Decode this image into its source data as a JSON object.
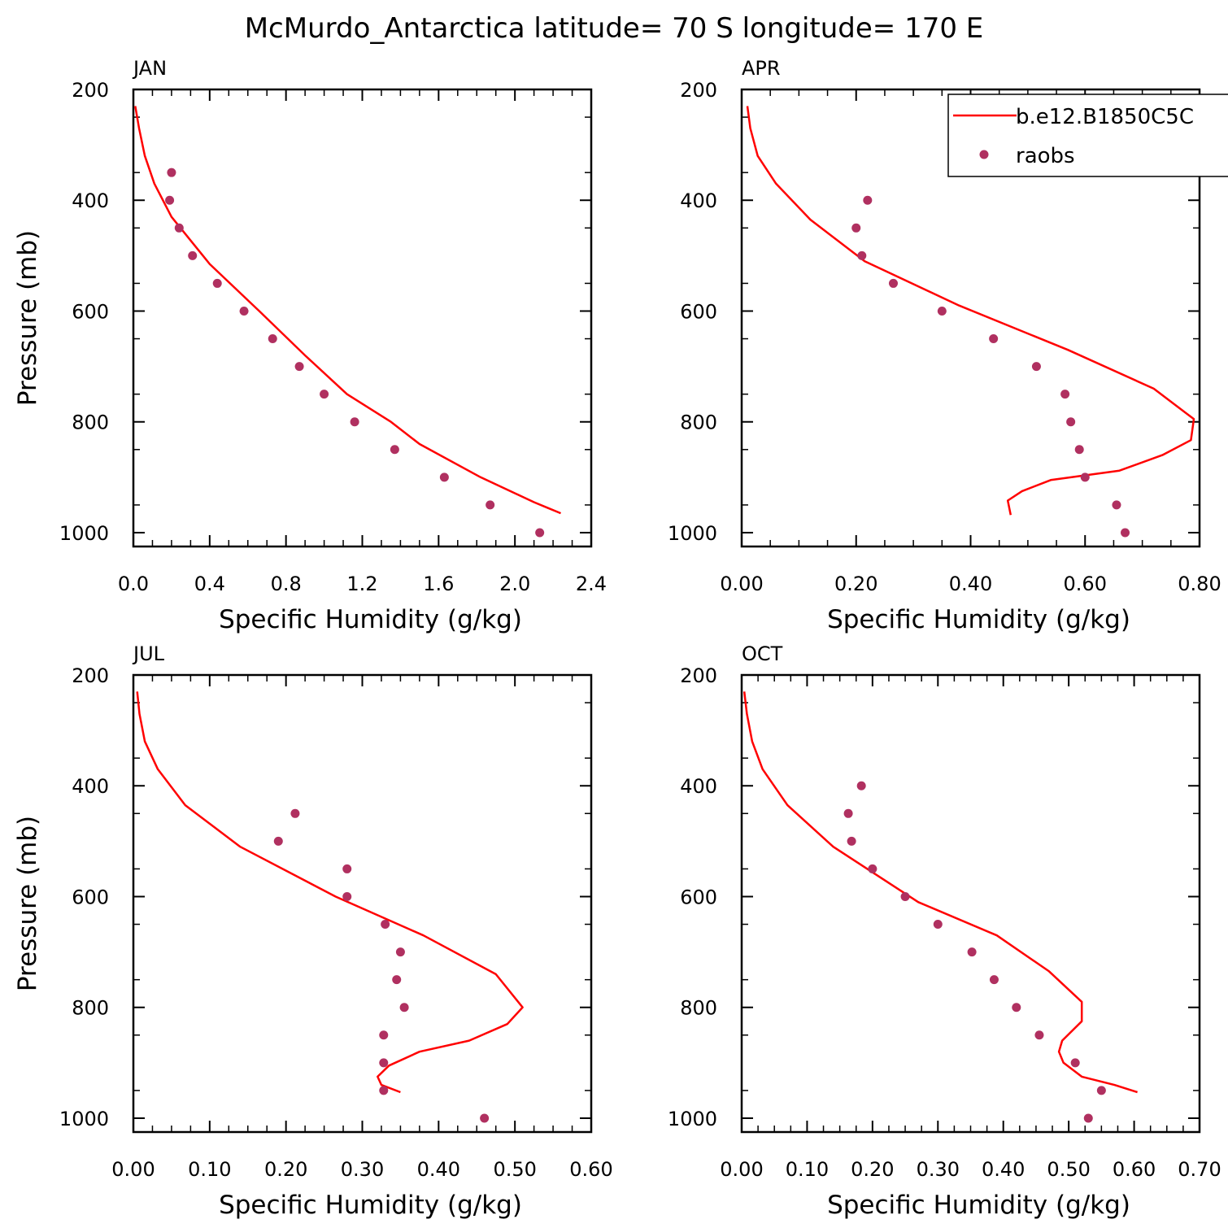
{
  "title": "McMurdo_Antarctica  latitude= 70 S longitude= 170 E",
  "legend": {
    "placement": "top-right of APR panel",
    "items": [
      {
        "label": "b.e12.B1850C5C",
        "marker": "line",
        "color": "#ff0000"
      },
      {
        "label": "raobs",
        "marker": "dot",
        "color": "#b03060"
      }
    ]
  },
  "chart_data": [
    {
      "type": "line",
      "panel": "JAN",
      "xlabel": "Specific Humidity (g/kg)",
      "ylabel": "Pressure (mb)",
      "xlim": [
        0,
        2.4
      ],
      "ylim": [
        1025,
        200
      ],
      "y_inverted": true,
      "xticks": [
        "0.0",
        "0.4",
        "0.8",
        "1.2",
        "1.6",
        "2.0",
        "2.4"
      ],
      "yticks": [
        "200",
        "400",
        "600",
        "800",
        "1000"
      ],
      "series": [
        {
          "name": "b.e12.B1850C5C",
          "kind": "line",
          "color": "#ff0000",
          "x": [
            0.01,
            0.03,
            0.06,
            0.11,
            0.2,
            0.4,
            0.66,
            0.9,
            1.12,
            1.35,
            1.5,
            1.82,
            2.1,
            2.17,
            2.24
          ],
          "y": [
            230,
            270,
            320,
            370,
            430,
            515,
            600,
            680,
            750,
            800,
            840,
            900,
            945,
            955,
            965
          ]
        },
        {
          "name": "raobs",
          "kind": "scatter",
          "color": "#b03060",
          "x": [
            0.2,
            0.19,
            0.24,
            0.31,
            0.44,
            0.58,
            0.73,
            0.87,
            1.0,
            1.16,
            1.37,
            1.63,
            1.87,
            2.13
          ],
          "y": [
            350,
            400,
            450,
            500,
            550,
            600,
            650,
            700,
            750,
            800,
            850,
            900,
            950,
            1000
          ]
        }
      ]
    },
    {
      "type": "line",
      "panel": "APR",
      "xlabel": "Specific Humidity (g/kg)",
      "ylabel": "",
      "xlim": [
        0,
        0.8
      ],
      "ylim": [
        1025,
        200
      ],
      "y_inverted": true,
      "xticks": [
        "0.00",
        "0.20",
        "0.40",
        "0.60",
        "0.80"
      ],
      "yticks": [
        "200",
        "400",
        "600",
        "800",
        "1000"
      ],
      "series": [
        {
          "name": "b.e12.B1850C5C",
          "kind": "line",
          "color": "#ff0000",
          "x": [
            0.01,
            0.015,
            0.028,
            0.06,
            0.12,
            0.215,
            0.38,
            0.57,
            0.72,
            0.79,
            0.785,
            0.735,
            0.66,
            0.54,
            0.49,
            0.465,
            0.47
          ],
          "y": [
            230,
            270,
            320,
            370,
            435,
            510,
            590,
            670,
            740,
            795,
            833,
            860,
            888,
            905,
            925,
            942,
            968
          ]
        },
        {
          "name": "raobs",
          "kind": "scatter",
          "color": "#b03060",
          "x": [
            0.22,
            0.2,
            0.21,
            0.265,
            0.35,
            0.44,
            0.515,
            0.565,
            0.575,
            0.59,
            0.6,
            0.655,
            0.67
          ],
          "y": [
            400,
            450,
            500,
            550,
            600,
            650,
            700,
            750,
            800,
            850,
            900,
            950,
            1000
          ]
        }
      ]
    },
    {
      "type": "line",
      "panel": "JUL",
      "xlabel": "Specific Humidity (g/kg)",
      "ylabel": "Pressure (mb)",
      "xlim": [
        0,
        0.6
      ],
      "ylim": [
        1025,
        200
      ],
      "y_inverted": true,
      "xticks": [
        "0.00",
        "0.10",
        "0.20",
        "0.30",
        "0.40",
        "0.50",
        "0.60"
      ],
      "yticks": [
        "200",
        "400",
        "600",
        "800",
        "1000"
      ],
      "series": [
        {
          "name": "b.e12.B1850C5C",
          "kind": "line",
          "color": "#ff0000",
          "x": [
            0.005,
            0.008,
            0.015,
            0.032,
            0.068,
            0.14,
            0.265,
            0.38,
            0.475,
            0.51,
            0.49,
            0.44,
            0.375,
            0.335,
            0.32,
            0.325,
            0.35
          ],
          "y": [
            230,
            270,
            320,
            370,
            435,
            510,
            600,
            670,
            740,
            800,
            830,
            860,
            880,
            905,
            925,
            940,
            953
          ]
        },
        {
          "name": "raobs",
          "kind": "scatter",
          "color": "#b03060",
          "x": [
            0.212,
            0.19,
            0.28,
            0.28,
            0.33,
            0.35,
            0.345,
            0.355,
            0.328,
            0.328,
            0.328,
            0.46
          ],
          "y": [
            450,
            500,
            550,
            600,
            650,
            700,
            750,
            800,
            850,
            900,
            950,
            1000
          ]
        }
      ]
    },
    {
      "type": "line",
      "panel": "OCT",
      "xlabel": "Specific Humidity (g/kg)",
      "ylabel": "",
      "xlim": [
        0,
        0.7
      ],
      "ylim": [
        1025,
        200
      ],
      "y_inverted": true,
      "xticks": [
        "0.00",
        "0.10",
        "0.20",
        "0.30",
        "0.40",
        "0.50",
        "0.60",
        "0.70"
      ],
      "yticks": [
        "200",
        "400",
        "600",
        "800",
        "1000"
      ],
      "series": [
        {
          "name": "b.e12.B1850C5C",
          "kind": "line",
          "color": "#ff0000",
          "x": [
            0.004,
            0.008,
            0.016,
            0.032,
            0.07,
            0.14,
            0.27,
            0.39,
            0.47,
            0.52,
            0.52,
            0.49,
            0.485,
            0.492,
            0.52,
            0.57,
            0.605
          ],
          "y": [
            230,
            270,
            320,
            370,
            435,
            510,
            610,
            670,
            735,
            790,
            825,
            860,
            880,
            900,
            925,
            940,
            953
          ]
        },
        {
          "name": "raobs",
          "kind": "scatter",
          "color": "#b03060",
          "x": [
            0.183,
            0.163,
            0.168,
            0.2,
            0.25,
            0.3,
            0.352,
            0.386,
            0.42,
            0.455,
            0.51,
            0.55,
            0.53
          ],
          "y": [
            400,
            450,
            500,
            550,
            600,
            650,
            700,
            750,
            800,
            850,
            900,
            950,
            1000
          ]
        }
      ]
    }
  ]
}
